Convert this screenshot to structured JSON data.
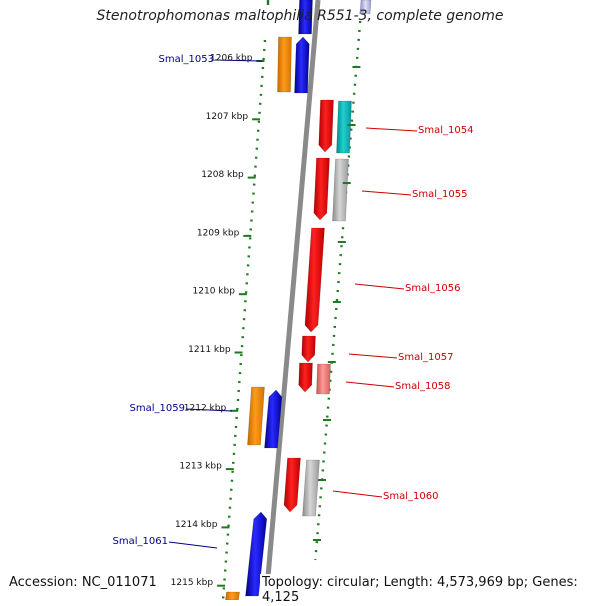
{
  "title": "Stenotrophomonas maltophilia R551-3, complete genome",
  "accession": "Accession: NC_011071",
  "topology": "Topology: circular; Length: 4,573,969 bp; Genes: 4,125",
  "colors": {
    "backbone": "#8a8a8a",
    "tick": "#1e7a1e",
    "reverse_label": "#00008b",
    "forward_label": "#cc0000",
    "red": "#ff0000",
    "blue": "#0000ff",
    "orange": "#ff8c00",
    "cyan": "#00c0c0",
    "gray": "#b8b8b8",
    "pink": "#ff7f7f"
  },
  "ruler": [
    {
      "label": "1206 kbp"
    },
    {
      "label": "1207 kbp"
    },
    {
      "label": "1208 kbp"
    },
    {
      "label": "1209 kbp"
    },
    {
      "label": "1210 kbp"
    },
    {
      "label": "1211 kbp"
    },
    {
      "label": "1212 kbp"
    },
    {
      "label": "1213 kbp"
    },
    {
      "label": "1214 kbp"
    },
    {
      "label": "1215 kbp"
    }
  ],
  "labels": [
    {
      "id": "Smal_1053",
      "text": "Smal_1053",
      "strand": "reverse"
    },
    {
      "id": "Smal_1054",
      "text": "Smal_1054",
      "strand": "forward"
    },
    {
      "id": "Smal_1055",
      "text": "Smal_1055",
      "strand": "forward"
    },
    {
      "id": "Smal_1056",
      "text": "Smal_1056",
      "strand": "forward"
    },
    {
      "id": "Smal_1057",
      "text": "Smal_1057",
      "strand": "forward"
    },
    {
      "id": "Smal_1058",
      "text": "Smal_1058",
      "strand": "forward"
    },
    {
      "id": "Smal_1059",
      "text": "Smal_1059",
      "strand": "reverse"
    },
    {
      "id": "Smal_1060",
      "text": "Smal_1060",
      "strand": "forward"
    },
    {
      "id": "Smal_1061",
      "text": "Smal_1061",
      "strand": "reverse"
    }
  ]
}
